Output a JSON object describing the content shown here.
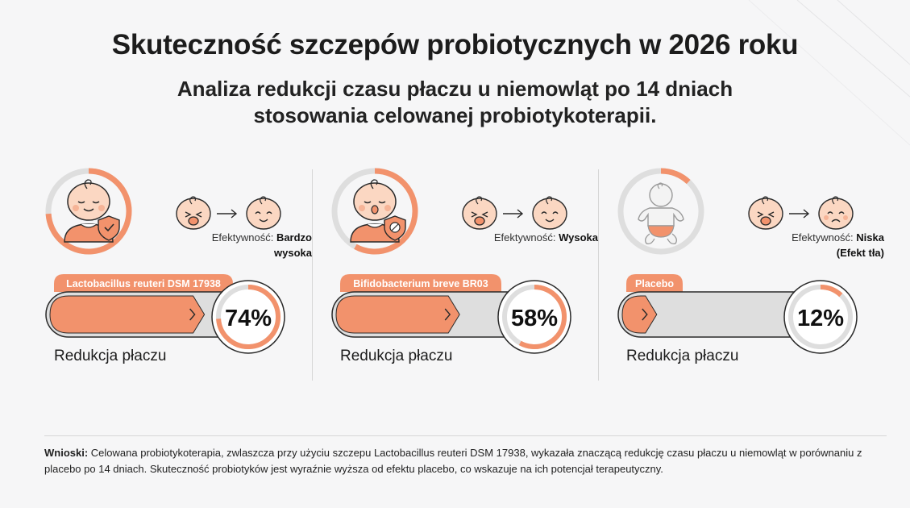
{
  "title": "Skuteczność szczepów probiotycznych w 2026 roku",
  "subtitle_line1": "Analiza redukcji czasu płaczu u niemowląt po 14 dniach",
  "subtitle_line2": "stosowania celowanej probiotykoterapii.",
  "colors": {
    "accent": "#f2926c",
    "track": "#dedede",
    "outline": "#2a2a2a",
    "skin": "#fbd7c2"
  },
  "panels": [
    {
      "strain": "Lactobacillus reuteri DSM 17938",
      "percent": 74,
      "percent_label": "74%",
      "metric_label": "Redukcja płaczu",
      "efficacy_label": "Efektywność:",
      "efficacy_value_1": "Bardzo",
      "efficacy_value_2": "wysoka",
      "avatar_icon": "sleeping-baby-shield-check-icon",
      "after_face": "happy-baby-face-icon"
    },
    {
      "strain": "Bifidobacterium breve BR03",
      "percent": 58,
      "percent_label": "58%",
      "metric_label": "Redukcja płaczu",
      "efficacy_label": "Efektywność:",
      "efficacy_value_1": "Wysoka",
      "efficacy_value_2": "",
      "avatar_icon": "baby-pacifier-shield-icon",
      "after_face": "happy-baby-face-icon"
    },
    {
      "strain": "Placebo",
      "percent": 12,
      "percent_label": "12%",
      "metric_label": "Redukcja płaczu",
      "efficacy_label": "Efektywność:",
      "efficacy_value_1": "Niska",
      "efficacy_value_2": "(Efekt tła)",
      "avatar_icon": "baby-outline-diaper-icon",
      "after_face": "sad-baby-face-icon"
    }
  ],
  "conclusion": {
    "label": "Wnioski:",
    "text": " Celowana probiotykoterapia, zwlaszcza przy użyciu szczepu Lactobacillus reuteri DSM 17938, wykazała znaczącą redukcję czasu płaczu u niemowląt w porównaniu z placebo po 14 dniach. Skuteczność probiotyków jest wyraźnie wyższa od efektu placebo, co wskazuje na ich potencjał terapeutyczny."
  }
}
